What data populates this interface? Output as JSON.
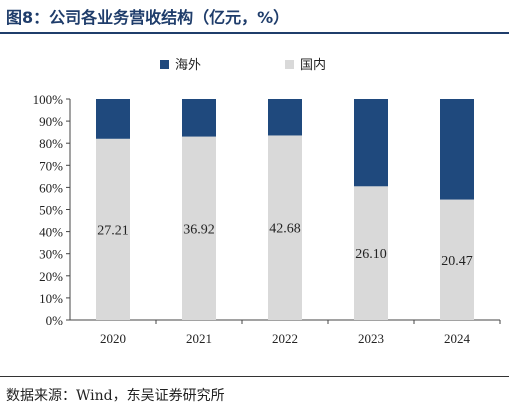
{
  "figure": {
    "title": "图8：公司各业务营收结构（亿元，%）",
    "source": "数据来源：Wind，东吴证券研究所"
  },
  "colors": {
    "overseas": "#1f497d",
    "domestic": "#d9d9d9",
    "title": "#1f3d6b"
  },
  "chart_data": {
    "type": "bar",
    "stacked": true,
    "percent_stacked": true,
    "categories": [
      "2020",
      "2021",
      "2022",
      "2023",
      "2024"
    ],
    "series": [
      {
        "name": "国内",
        "values_pct": [
          82,
          83,
          83.5,
          60.5,
          54.5
        ],
        "data_labels": [
          "27.21",
          "36.92",
          "42.68",
          "26.10",
          "20.47"
        ]
      },
      {
        "name": "海外",
        "values_pct": [
          18,
          17,
          16.5,
          39.5,
          45.5
        ]
      }
    ],
    "legend_order": [
      "海外",
      "国内"
    ],
    "legend_position": "top-center",
    "yticks": [
      "0%",
      "10%",
      "20%",
      "30%",
      "40%",
      "50%",
      "60%",
      "70%",
      "80%",
      "90%",
      "100%"
    ],
    "ylim": [
      0,
      100
    ],
    "grid": false
  }
}
